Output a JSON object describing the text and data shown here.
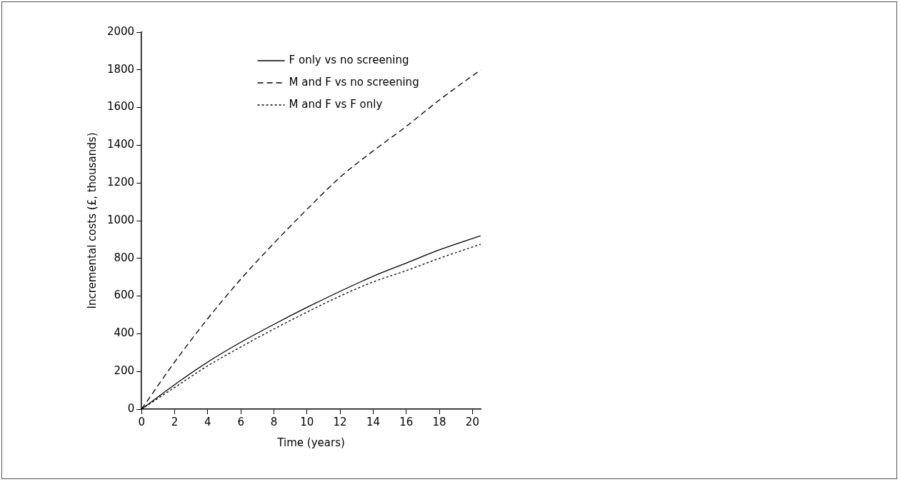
{
  "chart_data": {
    "type": "line",
    "xlabel": "Time (years)",
    "ylabel": "Incremental costs (£, thousands)",
    "x": [
      0,
      2,
      4,
      6,
      8,
      10,
      12,
      14,
      16,
      18,
      20.5
    ],
    "series": [
      {
        "name": "F only vs no screening",
        "color": "#000000",
        "line_style": "solid",
        "values": [
          0,
          130,
          250,
          355,
          450,
          540,
          625,
          705,
          775,
          845,
          920
        ]
      },
      {
        "name": "M and F vs no screening",
        "color": "#000000",
        "line_style": "dashed",
        "values": [
          0,
          250,
          480,
          690,
          880,
          1060,
          1230,
          1370,
          1500,
          1640,
          1800
        ]
      },
      {
        "name": "M and F vs F only",
        "color": "#000000",
        "line_style": "dotted",
        "values": [
          0,
          115,
          230,
          330,
          425,
          515,
          600,
          675,
          735,
          800,
          875
        ]
      }
    ],
    "xlim": [
      0,
      20.5
    ],
    "xticks": [
      0,
      2,
      4,
      6,
      8,
      10,
      12,
      14,
      16,
      18,
      20
    ],
    "ylim": [
      0,
      2000
    ],
    "yticks": [
      0,
      200,
      400,
      600,
      800,
      1000,
      1200,
      1400,
      1600,
      1800,
      2000
    ],
    "grid": false,
    "legend": "top",
    "marker": "none"
  }
}
